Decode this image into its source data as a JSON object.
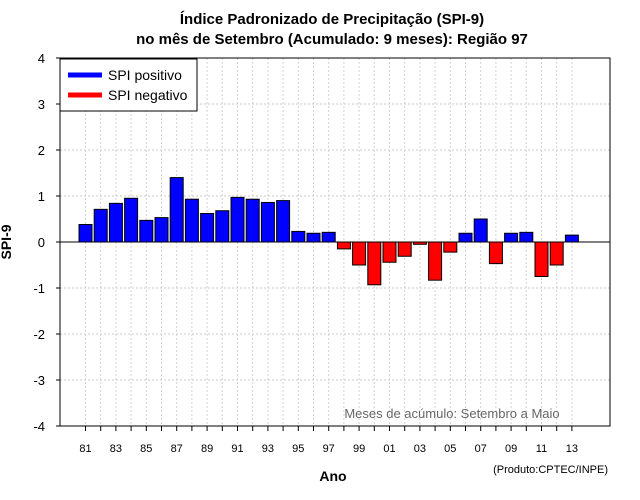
{
  "chart_data": {
    "type": "bar",
    "title_line1": "Índice Padronizado de Precipitação (SPI-9)",
    "title_line2": "no mês de Setembro (Acumulado: 9 meses): Região 97",
    "xlabel": "Ano",
    "ylabel": "SPI-9",
    "ylim": [
      -4,
      4
    ],
    "yticks": [
      -4,
      -3,
      -2,
      -1,
      0,
      1,
      2,
      3,
      4
    ],
    "grid": true,
    "legend_position": "top-left",
    "legend": [
      {
        "label": "SPI positivo",
        "color": "#0000ff"
      },
      {
        "label": "SPI negativo",
        "color": "#ff0000"
      }
    ],
    "annotation": "Meses de acúmulo: Setembro a Maio",
    "credit": "(Produto:CPTEC/INPE)",
    "xtick_labels": [
      "81",
      "83",
      "85",
      "87",
      "89",
      "91",
      "93",
      "95",
      "97",
      "99",
      "01",
      "03",
      "05",
      "07",
      "09",
      "11",
      "13"
    ],
    "categories": [
      "1981",
      "1982",
      "1983",
      "1984",
      "1985",
      "1986",
      "1987",
      "1988",
      "1989",
      "1990",
      "1991",
      "1992",
      "1993",
      "1994",
      "1995",
      "1996",
      "1997",
      "1998",
      "1999",
      "2000",
      "2001",
      "2002",
      "2003",
      "2004",
      "2005",
      "2006",
      "2007",
      "2008",
      "2009",
      "2010",
      "2011",
      "2012",
      "2013"
    ],
    "values": [
      0.38,
      0.71,
      0.84,
      0.95,
      0.47,
      0.53,
      1.4,
      0.93,
      0.62,
      0.68,
      0.97,
      0.93,
      0.86,
      0.9,
      0.23,
      0.19,
      0.21,
      -0.15,
      -0.5,
      -0.93,
      -0.44,
      -0.31,
      -0.05,
      -0.83,
      -0.22,
      0.19,
      0.5,
      -0.47,
      0.19,
      0.21,
      -0.75,
      -0.5,
      0.15
    ],
    "positive_color": "#0000ff",
    "negative_color": "#ff0000"
  }
}
